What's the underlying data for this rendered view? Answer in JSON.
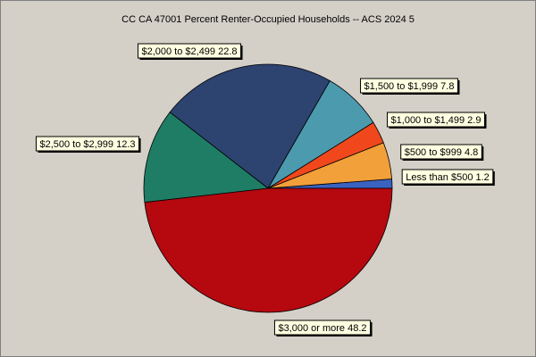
{
  "chart_data": {
    "type": "pie",
    "title": "CC CA 47001 Percent Renter-Occupied Households -- ACS 2024 5",
    "categories": [
      "Less than $500",
      "$500 to $999",
      "$1,000 to $1,499",
      "$1,500 to $1,999",
      "$2,000 to $2,499",
      "$2,500 to $2,999",
      "$3,000 or more"
    ],
    "values": [
      1.2,
      4.8,
      2.9,
      7.8,
      22.8,
      12.3,
      48.2
    ],
    "colors": [
      "#3a62c0",
      "#f2a03a",
      "#f0481c",
      "#4c9aae",
      "#2d4370",
      "#1f7d66",
      "#b5080f"
    ]
  }
}
